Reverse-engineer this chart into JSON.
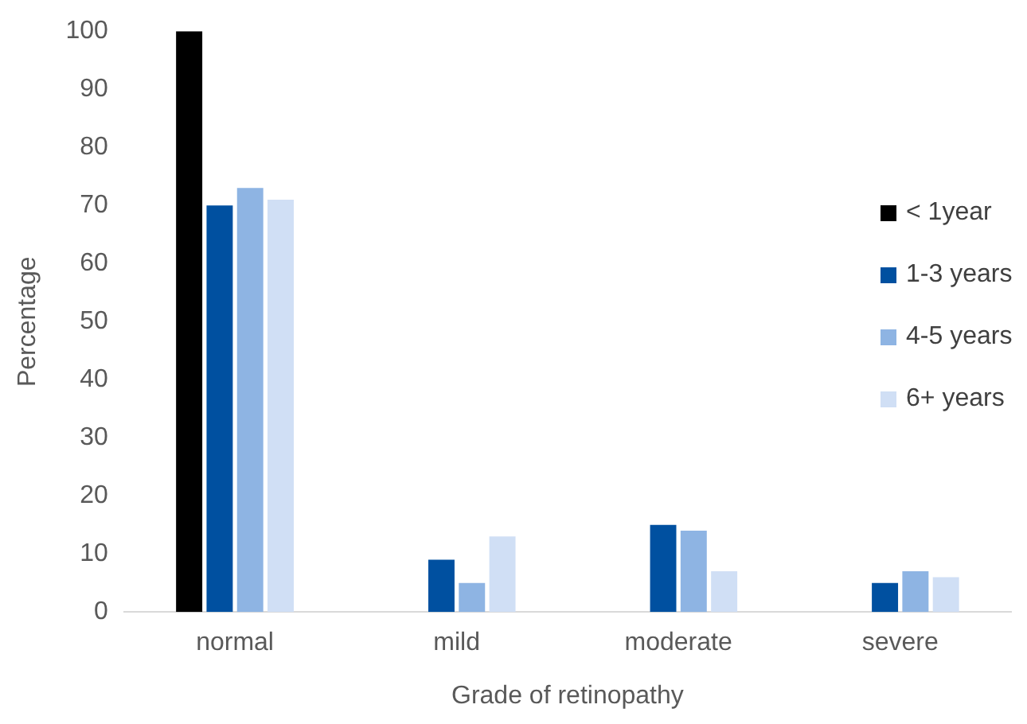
{
  "chart_data": {
    "type": "bar",
    "xlabel": "Grade of retinopathy",
    "ylabel": "Percentage",
    "categories": [
      "normal",
      "mild",
      "moderate",
      "severe"
    ],
    "series": [
      {
        "name": "< 1year",
        "color": "#000000",
        "values": [
          100,
          0,
          0,
          0
        ]
      },
      {
        "name": "1-3 years",
        "color": "#0050a0",
        "values": [
          70,
          9,
          15,
          5
        ]
      },
      {
        "name": "4-5 years",
        "color": "#8eb4e3",
        "values": [
          73,
          5,
          14,
          7
        ]
      },
      {
        "name": "6+ years",
        "color": "#d0dff5",
        "values": [
          71,
          13,
          7,
          6
        ]
      }
    ],
    "ylim": [
      0,
      100
    ],
    "yticks": [
      0,
      10,
      20,
      30,
      40,
      50,
      60,
      70,
      80,
      90,
      100
    ],
    "grid": false,
    "legend": "right"
  }
}
